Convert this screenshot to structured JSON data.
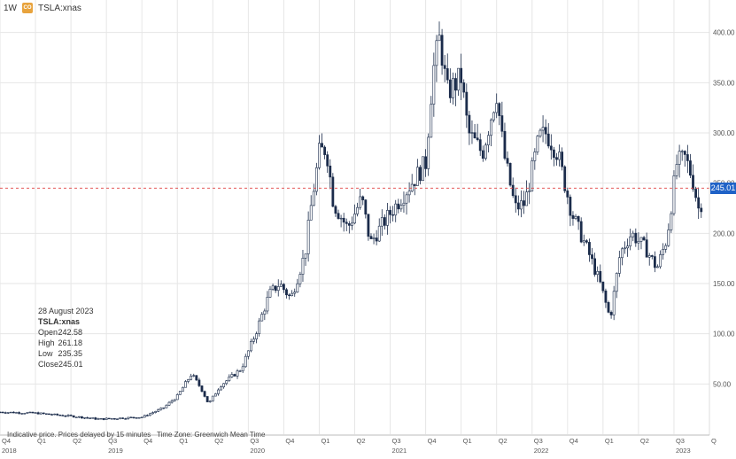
{
  "header": {
    "interval": "1W",
    "logo_text": "CO",
    "symbol": "TSLA:xnas"
  },
  "info": {
    "date": "28 August 2023",
    "symbol": "TSLA:xnas",
    "rows": [
      {
        "label": "Open",
        "value": "242.58"
      },
      {
        "label": "High",
        "value": "261.18"
      },
      {
        "label": "Low",
        "value": "235.35"
      },
      {
        "label": "Close",
        "value": "245.01"
      }
    ]
  },
  "footer": {
    "delay": "Indicative price. Prices delayed by 15 minutes",
    "tz": "Time Zone: Greenwich Mean Time"
  },
  "last_price": "245.01",
  "colors": {
    "candle": "#1a2b4a",
    "grid": "#e6e6e6",
    "price_line": "#e04040",
    "tag": "#1f62c7"
  },
  "chart_data": {
    "type": "candlestick",
    "interval": "1W",
    "y_axis": {
      "position": "right",
      "min": 0,
      "max": 420,
      "ticks": [
        50,
        100,
        150,
        200,
        250,
        300,
        350,
        400
      ],
      "tick_labels": [
        "50.00",
        "100.00",
        "150.00",
        "200.00",
        "250.00",
        "300.00",
        "350.00",
        "400.00"
      ]
    },
    "x_axis": {
      "range": [
        2018.75,
        2023.75
      ],
      "quarter_ticks": [
        {
          "t": 2018.75,
          "label": "Q4"
        },
        {
          "t": 2019.0,
          "label": "Q1"
        },
        {
          "t": 2019.25,
          "label": "Q2"
        },
        {
          "t": 2019.5,
          "label": "Q3"
        },
        {
          "t": 2019.75,
          "label": "Q4"
        },
        {
          "t": 2020.0,
          "label": "Q1"
        },
        {
          "t": 2020.25,
          "label": "Q2"
        },
        {
          "t": 2020.5,
          "label": "Q3"
        },
        {
          "t": 2020.75,
          "label": "Q4"
        },
        {
          "t": 2021.0,
          "label": "Q1"
        },
        {
          "t": 2021.25,
          "label": "Q2"
        },
        {
          "t": 2021.5,
          "label": "Q3"
        },
        {
          "t": 2021.75,
          "label": "Q4"
        },
        {
          "t": 2022.0,
          "label": "Q1"
        },
        {
          "t": 2022.25,
          "label": "Q2"
        },
        {
          "t": 2022.5,
          "label": "Q3"
        },
        {
          "t": 2022.75,
          "label": "Q4"
        },
        {
          "t": 2023.0,
          "label": "Q1"
        },
        {
          "t": 2023.25,
          "label": "Q2"
        },
        {
          "t": 2023.5,
          "label": "Q3"
        },
        {
          "t": 2023.75,
          "label": "Q"
        }
      ],
      "year_ticks": [
        {
          "t": 2018.75,
          "label": "2018"
        },
        {
          "t": 2019.5,
          "label": "2019"
        },
        {
          "t": 2020.5,
          "label": "2020"
        },
        {
          "t": 2021.5,
          "label": "2021"
        },
        {
          "t": 2022.5,
          "label": "2022"
        },
        {
          "t": 2023.5,
          "label": "2023"
        }
      ]
    },
    "grid": true,
    "last_price_line": 245.01,
    "anchors": [
      [
        2018.75,
        22
      ],
      [
        2019.0,
        21
      ],
      [
        2019.25,
        18
      ],
      [
        2019.45,
        15
      ],
      [
        2019.6,
        16
      ],
      [
        2019.75,
        17
      ],
      [
        2019.9,
        26
      ],
      [
        2020.0,
        38
      ],
      [
        2020.1,
        60
      ],
      [
        2020.17,
        45
      ],
      [
        2020.22,
        30
      ],
      [
        2020.3,
        48
      ],
      [
        2020.45,
        65
      ],
      [
        2020.55,
        100
      ],
      [
        2020.65,
        140
      ],
      [
        2020.72,
        150
      ],
      [
        2020.8,
        135
      ],
      [
        2020.9,
        180
      ],
      [
        2020.95,
        235
      ],
      [
        2021.0,
        280
      ],
      [
        2021.05,
        285
      ],
      [
        2021.1,
        230
      ],
      [
        2021.2,
        205
      ],
      [
        2021.3,
        235
      ],
      [
        2021.36,
        190
      ],
      [
        2021.45,
        210
      ],
      [
        2021.55,
        230
      ],
      [
        2021.65,
        250
      ],
      [
        2021.75,
        270
      ],
      [
        2021.8,
        360
      ],
      [
        2021.85,
        395
      ],
      [
        2021.9,
        340
      ],
      [
        2022.0,
        355
      ],
      [
        2022.05,
        300
      ],
      [
        2022.15,
        280
      ],
      [
        2022.25,
        340
      ],
      [
        2022.3,
        280
      ],
      [
        2022.38,
        225
      ],
      [
        2022.45,
        230
      ],
      [
        2022.55,
        295
      ],
      [
        2022.6,
        300
      ],
      [
        2022.68,
        280
      ],
      [
        2022.78,
        220
      ],
      [
        2022.9,
        180
      ],
      [
        2022.98,
        150
      ],
      [
        2023.05,
        115
      ],
      [
        2023.12,
        180
      ],
      [
        2023.2,
        200
      ],
      [
        2023.3,
        185
      ],
      [
        2023.38,
        165
      ],
      [
        2023.45,
        195
      ],
      [
        2023.52,
        270
      ],
      [
        2023.58,
        275
      ],
      [
        2023.63,
        255
      ],
      [
        2023.68,
        220
      ],
      [
        2023.71,
        245
      ]
    ]
  }
}
